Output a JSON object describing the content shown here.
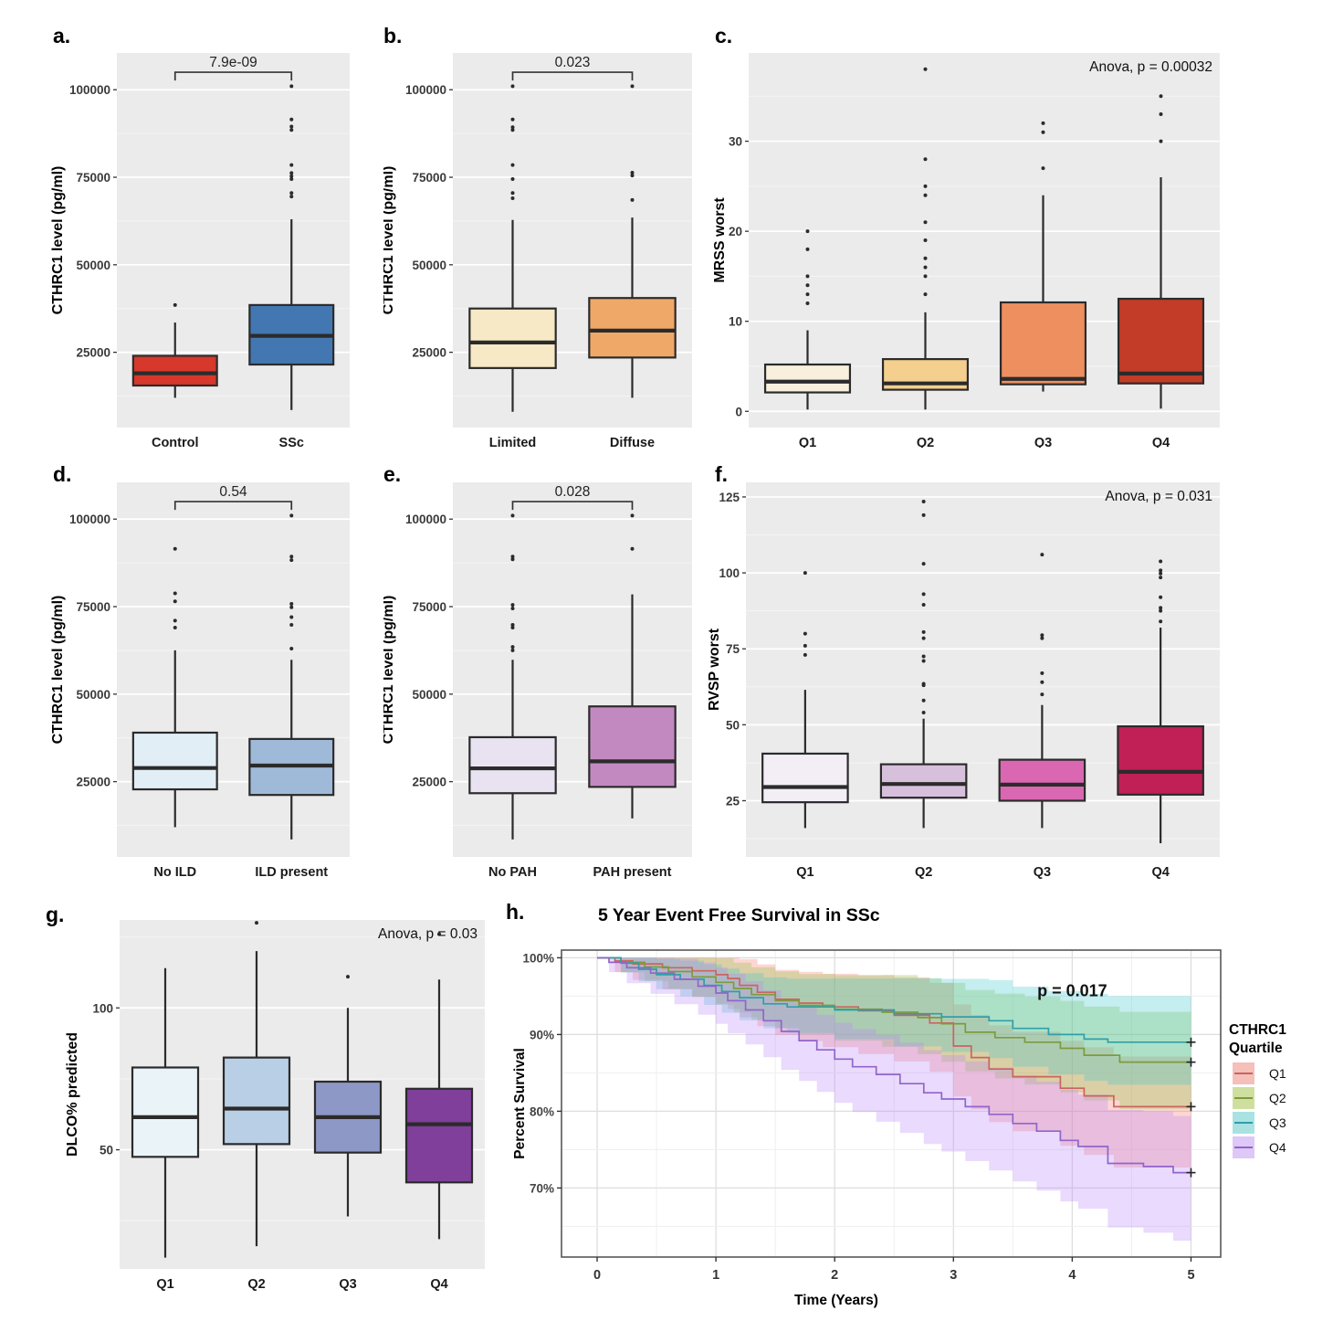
{
  "figure_background": "#ffffff",
  "panel_background": "#ebebeb",
  "grid_major": "#ffffff",
  "grid_minor": "#f4f4f4",
  "box_stroke": "#2b2b2b",
  "chart_data": [
    {
      "id": "a",
      "type": "boxplot",
      "label": "a.",
      "p_label": "7.9e-09",
      "bracket_y": 105000,
      "ylabel": "CTHRC1 level (pg/ml)",
      "yticks": [
        25000,
        50000,
        75000,
        100000
      ],
      "ytick_labels": [
        "25000",
        "50000",
        "75000",
        "100000"
      ],
      "ylim": [
        3500,
        110500
      ],
      "boxes": [
        {
          "name": "Control",
          "fill": "#d6382b",
          "low": 12000,
          "q1": 15500,
          "med": 19000,
          "q3": 24000,
          "high": 33500,
          "outliers": [
            38500
          ]
        },
        {
          "name": "SSc",
          "fill": "#4377b2",
          "low": 8500,
          "q1": 21500,
          "med": 29700,
          "q3": 38500,
          "high": 63000,
          "outliers": [
            69500,
            70500,
            74500,
            75300,
            76200,
            78500,
            88500,
            89500,
            91500,
            101000
          ]
        }
      ]
    },
    {
      "id": "b",
      "type": "boxplot",
      "label": "b.",
      "p_label": "0.023",
      "bracket_y": 105000,
      "ylabel": "CTHRC1 level (pg/ml)",
      "yticks": [
        25000,
        50000,
        75000,
        100000
      ],
      "ytick_labels": [
        "25000",
        "50000",
        "75000",
        "100000"
      ],
      "ylim": [
        3500,
        110500
      ],
      "boxes": [
        {
          "name": "Limited",
          "fill": "#f7e9c6",
          "low": 8000,
          "q1": 20500,
          "med": 27800,
          "q3": 37500,
          "high": 62800,
          "outliers": [
            69000,
            70500,
            74500,
            78500,
            88500,
            89300,
            91500,
            101000
          ]
        },
        {
          "name": "Diffuse",
          "fill": "#f0a868",
          "low": 12000,
          "q1": 23500,
          "med": 31200,
          "q3": 40500,
          "high": 63500,
          "outliers": [
            68500,
            75500,
            76300,
            101000
          ]
        }
      ]
    },
    {
      "id": "c",
      "type": "boxplot",
      "label": "c.",
      "anova_label": "Anova, p = 0.00032",
      "ylabel": "MRSS worst",
      "yticks": [
        0,
        10,
        20,
        30
      ],
      "ytick_labels": [
        "0",
        "10",
        "20",
        "30"
      ],
      "ylim": [
        -1.8,
        39.8
      ],
      "boxes": [
        {
          "name": "Q1",
          "fill": "#f8f0dc",
          "low": 0.2,
          "q1": 2.1,
          "med": 3.3,
          "q3": 5.2,
          "high": 9,
          "outliers": [
            12,
            13,
            14,
            15,
            18,
            20
          ]
        },
        {
          "name": "Q2",
          "fill": "#f4cf8e",
          "low": 0.2,
          "q1": 2.4,
          "med": 3.1,
          "q3": 5.8,
          "high": 11,
          "outliers": [
            13,
            15,
            16,
            17,
            19,
            21,
            24,
            25,
            28,
            38
          ]
        },
        {
          "name": "Q3",
          "fill": "#ee8f5f",
          "low": 2.2,
          "q1": 3.0,
          "med": 3.6,
          "q3": 12.1,
          "high": 24,
          "outliers": [
            27,
            31,
            32
          ]
        },
        {
          "name": "Q4",
          "fill": "#c23c28",
          "low": 0.3,
          "q1": 3.1,
          "med": 4.2,
          "q3": 12.5,
          "high": 26,
          "outliers": [
            30,
            33,
            35
          ]
        }
      ]
    },
    {
      "id": "d",
      "type": "boxplot",
      "label": "d.",
      "p_label": "0.54",
      "bracket_y": 105000,
      "ylabel": "CTHRC1 level (pg/ml)",
      "yticks": [
        25000,
        50000,
        75000,
        100000
      ],
      "ytick_labels": [
        "25000",
        "50000",
        "75000",
        "100000"
      ],
      "ylim": [
        3500,
        110500
      ],
      "boxes": [
        {
          "name": "No ILD",
          "fill": "#e2eef6",
          "low": 12000,
          "q1": 22800,
          "med": 28900,
          "q3": 39000,
          "high": 62500,
          "outliers": [
            69000,
            71000,
            76500,
            78800,
            91500
          ]
        },
        {
          "name": "ILD present",
          "fill": "#9fbad9",
          "low": 8500,
          "q1": 21200,
          "med": 29600,
          "q3": 37200,
          "high": 59800,
          "outliers": [
            63000,
            69800,
            72000,
            74800,
            75800,
            88300,
            89300,
            101000
          ]
        }
      ]
    },
    {
      "id": "e",
      "type": "boxplot",
      "label": "e.",
      "p_label": "0.028",
      "bracket_y": 105000,
      "ylabel": "CTHRC1 level (pg/ml)",
      "yticks": [
        25000,
        50000,
        75000,
        100000
      ],
      "ytick_labels": [
        "25000",
        "50000",
        "75000",
        "100000"
      ],
      "ylim": [
        3500,
        110500
      ],
      "boxes": [
        {
          "name": "No PAH",
          "fill": "#e9e3f1",
          "low": 8500,
          "q1": 21700,
          "med": 28800,
          "q3": 37700,
          "high": 59800,
          "outliers": [
            62500,
            63500,
            69000,
            69800,
            74500,
            75500,
            88500,
            89300,
            101000
          ]
        },
        {
          "name": "PAH present",
          "fill": "#c289c1",
          "low": 14500,
          "q1": 23500,
          "med": 30800,
          "q3": 46500,
          "high": 78500,
          "outliers": [
            91500,
            101000
          ]
        }
      ]
    },
    {
      "id": "f",
      "type": "boxplot",
      "label": "f.",
      "anova_label": "Anova, p = 0.031",
      "ylabel": "RVSP worst",
      "yticks": [
        25,
        50,
        75,
        100,
        125
      ],
      "ytick_labels": [
        "25",
        "50",
        "75",
        "100",
        "125"
      ],
      "ylim": [
        6.5,
        129.8
      ],
      "boxes": [
        {
          "name": "Q1",
          "fill": "#f3eef5",
          "low": 16,
          "q1": 24.5,
          "med": 29.5,
          "q3": 40.5,
          "high": 61.5,
          "outliers": [
            73,
            76,
            80,
            100
          ]
        },
        {
          "name": "Q2",
          "fill": "#d6c0dc",
          "low": 16,
          "q1": 26,
          "med": 30.5,
          "q3": 37,
          "high": 52,
          "outliers": [
            54,
            58,
            63,
            63.5,
            71,
            72.5,
            78.5,
            80.5,
            89.5,
            93,
            103,
            119,
            123.5
          ]
        },
        {
          "name": "Q3",
          "fill": "#d967b2",
          "low": 16,
          "q1": 25,
          "med": 30.3,
          "q3": 38.5,
          "high": 56.5,
          "outliers": [
            60,
            64,
            67,
            78.5,
            79.5,
            106
          ]
        },
        {
          "name": "Q4",
          "fill": "#c12057",
          "low": 11,
          "q1": 27,
          "med": 34.5,
          "q3": 49.5,
          "high": 82,
          "outliers": [
            84,
            87.5,
            88.5,
            92,
            98.5,
            99.8,
            100.8,
            103.8
          ]
        }
      ]
    },
    {
      "id": "g",
      "type": "boxplot",
      "label": "g.",
      "anova_label": "Anova, p = 0.03",
      "ylabel": "DLCO% predicted",
      "yticks": [
        50,
        100
      ],
      "ytick_labels": [
        "50",
        "100"
      ],
      "ylim": [
        8,
        131
      ],
      "boxes": [
        {
          "name": "Q1",
          "fill": "#eaf4f8",
          "low": 12,
          "q1": 47.5,
          "med": 61.5,
          "q3": 79,
          "high": 114,
          "outliers": []
        },
        {
          "name": "Q2",
          "fill": "#b9cfe5",
          "low": 16,
          "q1": 52,
          "med": 64.5,
          "q3": 82.5,
          "high": 120,
          "outliers": [
            130
          ]
        },
        {
          "name": "Q3",
          "fill": "#8e98c6",
          "low": 26.5,
          "q1": 49,
          "med": 61.5,
          "q3": 74,
          "high": 100,
          "outliers": [
            111
          ]
        },
        {
          "name": "Q4",
          "fill": "#7f3f9a",
          "low": 18.5,
          "q1": 38.5,
          "med": 59,
          "q3": 71.5,
          "high": 110,
          "outliers": [
            126
          ]
        }
      ]
    },
    {
      "id": "h",
      "type": "km",
      "label": "h.",
      "title": "5 Year Event Free Survival in SSc",
      "p_label": "p = 0.017",
      "xlabel": "Time (Years)",
      "ylabel": "Percent Survival",
      "xticks": [
        0,
        1,
        2,
        3,
        4,
        5
      ],
      "xtick_labels": [
        "0",
        "1",
        "2",
        "3",
        "4",
        "5"
      ],
      "yticks": [
        70,
        80,
        90,
        100
      ],
      "ytick_labels": [
        "70%",
        "80%",
        "90%",
        "100%"
      ],
      "xlim": [
        -0.3,
        5.25
      ],
      "ylim": [
        61,
        101
      ],
      "legend_title": [
        "CTHRC1",
        "Quartile"
      ],
      "series": [
        {
          "name": "Q1",
          "line": "#c9655e",
          "ribbon": "#f8766d",
          "swatch": "#f5bfba",
          "ci_up": 7,
          "ci_dn": 8.5,
          "steps": [
            [
              0,
              100
            ],
            [
              0.15,
              99.6
            ],
            [
              0.3,
              99.2
            ],
            [
              0.55,
              98.7
            ],
            [
              0.8,
              98.3
            ],
            [
              1.0,
              97.8
            ],
            [
              1.1,
              97.3
            ],
            [
              1.2,
              96.4
            ],
            [
              1.35,
              95.5
            ],
            [
              1.5,
              94.6
            ],
            [
              1.7,
              94.1
            ],
            [
              1.9,
              93.6
            ],
            [
              2.2,
              93.1
            ],
            [
              2.5,
              92.5
            ],
            [
              2.8,
              91.5
            ],
            [
              3.0,
              88.5
            ],
            [
              3.15,
              87.0
            ],
            [
              3.3,
              85.5
            ],
            [
              3.5,
              84.5
            ],
            [
              3.9,
              83.0
            ],
            [
              4.1,
              82.0
            ],
            [
              4.35,
              80.6
            ],
            [
              5,
              80.6
            ]
          ]
        },
        {
          "name": "Q2",
          "line": "#7d9b3b",
          "ribbon": "#8fbf3f",
          "swatch": "#cfdf9f",
          "ci_up": 7,
          "ci_dn": 6.5,
          "steps": [
            [
              0,
              100
            ],
            [
              0.2,
              99.4
            ],
            [
              0.4,
              98.8
            ],
            [
              0.6,
              98.2
            ],
            [
              0.8,
              97.5
            ],
            [
              1.0,
              96.8
            ],
            [
              1.15,
              96.0
            ],
            [
              1.3,
              95.2
            ],
            [
              1.5,
              94.4
            ],
            [
              1.7,
              93.8
            ],
            [
              2.0,
              93.3
            ],
            [
              2.4,
              92.9
            ],
            [
              2.7,
              92.2
            ],
            [
              2.9,
              91.4
            ],
            [
              3.1,
              90.3
            ],
            [
              3.35,
              89.6
            ],
            [
              3.6,
              89.0
            ],
            [
              3.9,
              88.2
            ],
            [
              4.1,
              87.3
            ],
            [
              4.4,
              86.4
            ],
            [
              5,
              86.4
            ]
          ]
        },
        {
          "name": "Q3",
          "line": "#2f9fa9",
          "ribbon": "#3fc8cc",
          "swatch": "#aae2e2",
          "ci_up": 6.5,
          "ci_dn": 6,
          "steps": [
            [
              0,
              100
            ],
            [
              0.2,
              99.3
            ],
            [
              0.35,
              98.5
            ],
            [
              0.5,
              97.8
            ],
            [
              0.7,
              97.2
            ],
            [
              0.9,
              96.4
            ],
            [
              1.05,
              95.6
            ],
            [
              1.2,
              94.8
            ],
            [
              1.4,
              94.0
            ],
            [
              1.6,
              93.6
            ],
            [
              2.0,
              93.2
            ],
            [
              2.5,
              92.7
            ],
            [
              2.9,
              92.3
            ],
            [
              3.3,
              91.8
            ],
            [
              3.5,
              90.8
            ],
            [
              3.8,
              90.0
            ],
            [
              4.1,
              89.4
            ],
            [
              4.3,
              89.0
            ],
            [
              5,
              89.0
            ]
          ]
        },
        {
          "name": "Q4",
          "line": "#9065cc",
          "ribbon": "#bb86f7",
          "swatch": "#ddc8f7",
          "ci_up": 7.5,
          "ci_dn": 9,
          "steps": [
            [
              0,
              100
            ],
            [
              0.1,
              99.4
            ],
            [
              0.25,
              98.7
            ],
            [
              0.45,
              98.0
            ],
            [
              0.65,
              97.2
            ],
            [
              0.85,
              96.3
            ],
            [
              1.0,
              95.4
            ],
            [
              1.1,
              94.4
            ],
            [
              1.25,
              93.2
            ],
            [
              1.4,
              91.8
            ],
            [
              1.55,
              90.4
            ],
            [
              1.7,
              89.2
            ],
            [
              1.85,
              88.0
            ],
            [
              2.0,
              86.8
            ],
            [
              2.15,
              85.8
            ],
            [
              2.35,
              84.8
            ],
            [
              2.55,
              83.6
            ],
            [
              2.75,
              82.4
            ],
            [
              2.9,
              81.6
            ],
            [
              3.1,
              80.6
            ],
            [
              3.3,
              79.6
            ],
            [
              3.5,
              78.4
            ],
            [
              3.7,
              77.4
            ],
            [
              3.9,
              76.2
            ],
            [
              4.05,
              75.4
            ],
            [
              4.3,
              73.2
            ],
            [
              4.6,
              72.8
            ],
            [
              4.85,
              72.0
            ],
            [
              5,
              72.0
            ]
          ]
        }
      ]
    }
  ]
}
